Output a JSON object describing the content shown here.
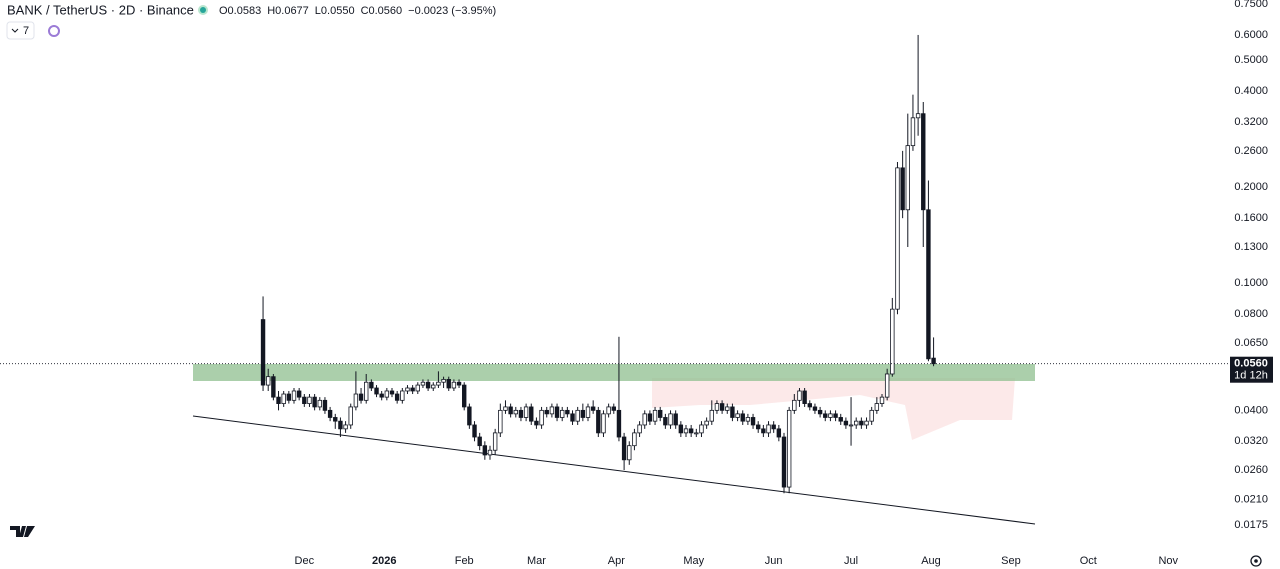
{
  "chart_data": {
    "type": "candlestick",
    "title": "BANK / TetherUS · 2D · Binance",
    "ohlc_labels": [
      "O0.0583",
      "H0.0677",
      "L0.0550",
      "C0.0560"
    ],
    "change_label": "−0.0023 (−3.95%)",
    "indicator_count": "7",
    "price_tag": {
      "value": 0.056,
      "label": "0.0560"
    },
    "countdown": "1d 12h",
    "log_scale": true,
    "xlim": [
      -118,
      357
    ],
    "xticks": [
      {
        "value": 0,
        "label": "Dec"
      },
      {
        "value": 31,
        "label": "2026"
      },
      {
        "value": 62,
        "label": "Feb"
      },
      {
        "value": 90,
        "label": "Mar"
      },
      {
        "value": 121,
        "label": "Apr"
      },
      {
        "value": 151,
        "label": "May"
      },
      {
        "value": 182,
        "label": "Jun"
      },
      {
        "value": 212,
        "label": "Jul"
      },
      {
        "value": 243,
        "label": "Aug"
      },
      {
        "value": 274,
        "label": "Sep"
      },
      {
        "value": 304,
        "label": "Oct"
      },
      {
        "value": 335,
        "label": "Nov"
      }
    ],
    "ylim": [
      0.0157,
      0.772
    ],
    "yticks": [
      {
        "value": 0.75,
        "label": "0.7500"
      },
      {
        "value": 0.6,
        "label": "0.6000"
      },
      {
        "value": 0.5,
        "label": "0.5000"
      },
      {
        "value": 0.4,
        "label": "0.4000"
      },
      {
        "value": 0.32,
        "label": "0.3200"
      },
      {
        "value": 0.26,
        "label": "0.2600"
      },
      {
        "value": 0.2,
        "label": "0.2000"
      },
      {
        "value": 0.16,
        "label": "0.1600"
      },
      {
        "value": 0.13,
        "label": "0.1300"
      },
      {
        "value": 0.1,
        "label": "0.1000"
      },
      {
        "value": 0.08,
        "label": "0.0800"
      },
      {
        "value": 0.065,
        "label": "0.0650"
      },
      {
        "value": 0.04,
        "label": "0.0400"
      },
      {
        "value": 0.032,
        "label": "0.0320"
      },
      {
        "value": 0.026,
        "label": "0.0260"
      },
      {
        "value": 0.021,
        "label": "0.0210"
      },
      {
        "value": 0.0175,
        "label": "0.0175"
      }
    ],
    "x": [
      -16,
      -14,
      -12,
      -10,
      -8,
      -6,
      -4,
      -2,
      0,
      2,
      4,
      6,
      8,
      10,
      12,
      14,
      16,
      18,
      20,
      22,
      24,
      26,
      28,
      30,
      32,
      34,
      36,
      38,
      40,
      42,
      44,
      46,
      48,
      50,
      52,
      54,
      56,
      58,
      60,
      62,
      64,
      66,
      68,
      70,
      72,
      74,
      76,
      78,
      80,
      82,
      84,
      86,
      88,
      90,
      92,
      94,
      96,
      98,
      100,
      102,
      104,
      106,
      108,
      110,
      112,
      114,
      116,
      118,
      120,
      122,
      124,
      126,
      128,
      130,
      132,
      134,
      136,
      138,
      140,
      142,
      144,
      146,
      148,
      150,
      152,
      154,
      156,
      158,
      160,
      162,
      164,
      166,
      168,
      170,
      172,
      174,
      176,
      178,
      180,
      182,
      184,
      186,
      188,
      190,
      192,
      194,
      196,
      198,
      200,
      202,
      204,
      206,
      208,
      210,
      212,
      214,
      216,
      218,
      220,
      222,
      224,
      226,
      228,
      230,
      232,
      234,
      236,
      238,
      240,
      242,
      244
    ],
    "open": [
      0.077,
      0.048,
      0.051,
      0.044,
      0.042,
      0.045,
      0.043,
      0.046,
      0.044,
      0.042,
      0.044,
      0.041,
      0.043,
      0.04,
      0.038,
      0.037,
      0.035,
      0.036,
      0.041,
      0.045,
      0.043,
      0.049,
      0.047,
      0.045,
      0.044,
      0.046,
      0.045,
      0.043,
      0.046,
      0.047,
      0.046,
      0.048,
      0.049,
      0.047,
      0.048,
      0.049,
      0.05,
      0.047,
      0.049,
      0.048,
      0.041,
      0.036,
      0.033,
      0.031,
      0.029,
      0.03,
      0.034,
      0.04,
      0.041,
      0.039,
      0.04,
      0.038,
      0.041,
      0.037,
      0.036,
      0.04,
      0.039,
      0.041,
      0.038,
      0.04,
      0.039,
      0.037,
      0.04,
      0.038,
      0.041,
      0.04,
      0.034,
      0.039,
      0.041,
      0.04,
      0.033,
      0.028,
      0.031,
      0.034,
      0.036,
      0.039,
      0.037,
      0.04,
      0.038,
      0.036,
      0.039,
      0.036,
      0.034,
      0.035,
      0.034,
      0.034,
      0.036,
      0.037,
      0.04,
      0.042,
      0.04,
      0.041,
      0.038,
      0.039,
      0.037,
      0.038,
      0.036,
      0.035,
      0.034,
      0.036,
      0.035,
      0.033,
      0.023,
      0.04,
      0.043,
      0.046,
      0.042,
      0.041,
      0.04,
      0.039,
      0.038,
      0.039,
      0.038,
      0.037,
      0.036,
      0.036,
      0.037,
      0.036,
      0.037,
      0.04,
      0.042,
      0.044,
      0.052,
      0.083,
      0.23,
      0.17,
      0.27,
      0.33,
      0.34,
      0.17,
      0.0583
    ],
    "high": [
      0.091,
      0.054,
      0.052,
      0.046,
      0.046,
      0.046,
      0.047,
      0.047,
      0.045,
      0.045,
      0.045,
      0.044,
      0.044,
      0.041,
      0.039,
      0.038,
      0.037,
      0.042,
      0.053,
      0.047,
      0.052,
      0.05,
      0.048,
      0.046,
      0.047,
      0.047,
      0.046,
      0.047,
      0.048,
      0.048,
      0.049,
      0.05,
      0.05,
      0.049,
      0.053,
      0.051,
      0.051,
      0.05,
      0.05,
      0.049,
      0.042,
      0.037,
      0.034,
      0.032,
      0.031,
      0.035,
      0.042,
      0.043,
      0.042,
      0.041,
      0.041,
      0.042,
      0.042,
      0.038,
      0.041,
      0.041,
      0.042,
      0.042,
      0.041,
      0.041,
      0.04,
      0.041,
      0.042,
      0.042,
      0.043,
      0.041,
      0.04,
      0.042,
      0.042,
      0.068,
      0.034,
      0.032,
      0.035,
      0.037,
      0.04,
      0.04,
      0.041,
      0.041,
      0.039,
      0.04,
      0.04,
      0.037,
      0.036,
      0.036,
      0.035,
      0.037,
      0.038,
      0.043,
      0.043,
      0.043,
      0.042,
      0.042,
      0.04,
      0.04,
      0.039,
      0.039,
      0.037,
      0.036,
      0.037,
      0.037,
      0.036,
      0.034,
      0.041,
      0.045,
      0.047,
      0.047,
      0.043,
      0.042,
      0.041,
      0.04,
      0.04,
      0.04,
      0.039,
      0.038,
      0.044,
      0.038,
      0.038,
      0.038,
      0.041,
      0.044,
      0.045,
      0.054,
      0.09,
      0.24,
      0.26,
      0.34,
      0.39,
      0.6,
      0.37,
      0.21,
      0.0677
    ],
    "low": [
      0.046,
      0.046,
      0.043,
      0.04,
      0.041,
      0.042,
      0.042,
      0.043,
      0.041,
      0.041,
      0.04,
      0.04,
      0.039,
      0.037,
      0.035,
      0.033,
      0.034,
      0.035,
      0.04,
      0.042,
      0.042,
      0.046,
      0.044,
      0.043,
      0.043,
      0.044,
      0.042,
      0.042,
      0.045,
      0.045,
      0.045,
      0.047,
      0.046,
      0.046,
      0.047,
      0.047,
      0.046,
      0.046,
      0.047,
      0.04,
      0.035,
      0.032,
      0.03,
      0.028,
      0.028,
      0.029,
      0.033,
      0.039,
      0.038,
      0.038,
      0.037,
      0.037,
      0.036,
      0.035,
      0.035,
      0.038,
      0.038,
      0.037,
      0.037,
      0.038,
      0.036,
      0.036,
      0.037,
      0.037,
      0.039,
      0.033,
      0.033,
      0.038,
      0.039,
      0.032,
      0.026,
      0.027,
      0.03,
      0.033,
      0.035,
      0.036,
      0.036,
      0.037,
      0.035,
      0.035,
      0.035,
      0.033,
      0.033,
      0.033,
      0.033,
      0.033,
      0.035,
      0.036,
      0.039,
      0.039,
      0.039,
      0.037,
      0.037,
      0.036,
      0.036,
      0.035,
      0.034,
      0.033,
      0.033,
      0.034,
      0.032,
      0.022,
      0.022,
      0.039,
      0.041,
      0.041,
      0.04,
      0.039,
      0.038,
      0.037,
      0.037,
      0.037,
      0.036,
      0.035,
      0.031,
      0.035,
      0.035,
      0.035,
      0.036,
      0.039,
      0.041,
      0.043,
      0.051,
      0.08,
      0.16,
      0.13,
      0.26,
      0.29,
      0.13,
      0.057,
      0.055
    ],
    "close": [
      0.048,
      0.051,
      0.044,
      0.042,
      0.045,
      0.043,
      0.046,
      0.044,
      0.042,
      0.044,
      0.041,
      0.043,
      0.04,
      0.038,
      0.037,
      0.035,
      0.036,
      0.041,
      0.045,
      0.043,
      0.049,
      0.047,
      0.045,
      0.044,
      0.046,
      0.045,
      0.043,
      0.046,
      0.047,
      0.046,
      0.048,
      0.049,
      0.047,
      0.048,
      0.049,
      0.05,
      0.047,
      0.049,
      0.048,
      0.041,
      0.036,
      0.033,
      0.031,
      0.029,
      0.03,
      0.034,
      0.04,
      0.041,
      0.039,
      0.04,
      0.038,
      0.041,
      0.037,
      0.036,
      0.04,
      0.039,
      0.041,
      0.038,
      0.04,
      0.039,
      0.037,
      0.04,
      0.038,
      0.041,
      0.04,
      0.034,
      0.039,
      0.041,
      0.04,
      0.033,
      0.028,
      0.031,
      0.034,
      0.036,
      0.039,
      0.037,
      0.04,
      0.038,
      0.036,
      0.039,
      0.036,
      0.034,
      0.035,
      0.034,
      0.034,
      0.036,
      0.037,
      0.04,
      0.042,
      0.04,
      0.041,
      0.038,
      0.039,
      0.037,
      0.038,
      0.036,
      0.035,
      0.034,
      0.036,
      0.035,
      0.033,
      0.023,
      0.04,
      0.043,
      0.046,
      0.042,
      0.041,
      0.04,
      0.039,
      0.038,
      0.039,
      0.038,
      0.037,
      0.036,
      0.036,
      0.037,
      0.036,
      0.037,
      0.04,
      0.042,
      0.044,
      0.052,
      0.083,
      0.23,
      0.17,
      0.27,
      0.33,
      0.34,
      0.17,
      0.058,
      0.056
    ]
  }
}
